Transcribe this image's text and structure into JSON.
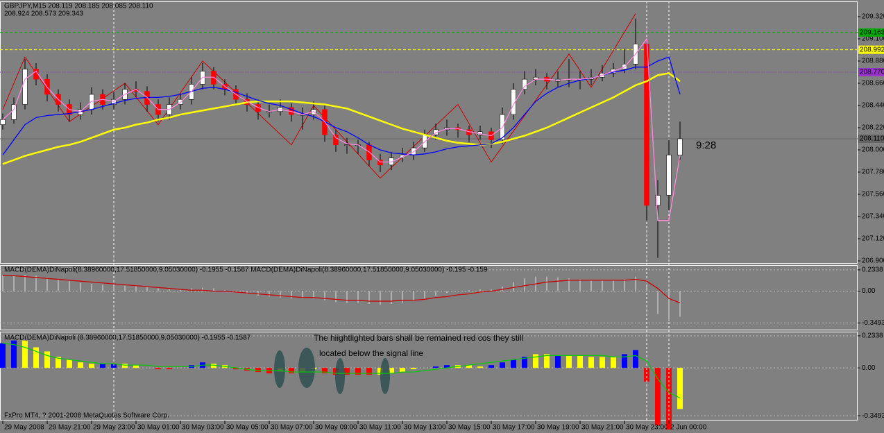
{
  "chart_data": [
    {
      "type": "candlestick",
      "title": "GBPJPY,M15  208.119 208.185 208.085 208.110",
      "subtitle": "208.924 208.573 209.343",
      "annotation": "9:28",
      "annotation_color": "#ffa500",
      "xlim": [
        -0.25,
        77
      ],
      "ylim": [
        206.8725,
        209.471
      ],
      "yticks": [
        {
          "value": 209.32,
          "label": "209.320"
        },
        {
          "value": 209.1,
          "label": "209.100"
        },
        {
          "value": 208.88,
          "label": "208.880"
        },
        {
          "value": 208.66,
          "label": "208.660"
        },
        {
          "value": 208.44,
          "label": "208.440"
        },
        {
          "value": 208.22,
          "label": "208.220"
        },
        {
          "value": 208,
          "label": "208.000"
        },
        {
          "value": 207.78,
          "label": "207.780"
        },
        {
          "value": 207.56,
          "label": "207.560"
        },
        {
          "value": 207.34,
          "label": "207.340"
        },
        {
          "value": 207.12,
          "label": "207.120"
        },
        {
          "value": 206.9,
          "label": "206.900"
        }
      ],
      "up_color": "#ffffff",
      "down_color": "#ff0000",
      "wick_color": "#000000",
      "open": [
        208.25,
        208.3,
        208.45,
        208.8,
        208.7,
        208.55,
        208.45,
        208.35,
        208.4,
        208.55,
        208.45,
        208.5,
        208.6,
        208.58,
        208.45,
        208.35,
        208.45,
        208.5,
        208.65,
        208.78,
        208.65,
        208.6,
        208.5,
        208.45,
        208.38,
        208.38,
        208.42,
        208.35,
        208.35,
        208.4,
        208.15,
        208.05,
        208.05,
        208.05,
        207.9,
        207.85,
        207.92,
        207.95,
        208.02,
        208.15,
        208.2,
        208.22,
        208.2,
        208.15,
        208.18,
        208.1,
        208.35,
        208.6,
        208.7,
        208.72,
        208.68,
        208.7,
        208.7,
        208.7,
        208.72,
        208.76,
        208.8,
        208.85,
        209.05,
        207.45,
        207.55,
        207.95
      ],
      "high": [
        208.36,
        208.52,
        208.9,
        208.86,
        208.75,
        208.6,
        208.5,
        208.47,
        208.62,
        208.6,
        208.57,
        208.66,
        208.68,
        208.63,
        208.5,
        208.52,
        208.56,
        208.72,
        208.86,
        208.82,
        208.7,
        208.64,
        208.56,
        208.5,
        208.45,
        208.5,
        208.46,
        208.42,
        208.48,
        208.44,
        208.2,
        208.12,
        208.1,
        208.08,
        207.96,
        207.98,
        208.02,
        208.08,
        208.2,
        208.26,
        208.3,
        208.26,
        208.24,
        208.24,
        208.22,
        208.42,
        208.66,
        208.78,
        208.8,
        208.76,
        208.78,
        208.9,
        208.78,
        208.8,
        208.84,
        208.86,
        209.0,
        209.3,
        209.1,
        207.7,
        208.1,
        208.28
      ],
      "low": [
        208.2,
        208.26,
        208.4,
        208.64,
        208.48,
        208.38,
        208.28,
        208.3,
        208.35,
        208.4,
        208.4,
        208.45,
        208.52,
        208.38,
        208.28,
        208.3,
        208.4,
        208.45,
        208.6,
        208.6,
        208.54,
        208.44,
        208.38,
        208.3,
        208.32,
        208.34,
        208.28,
        208.2,
        208.3,
        208.08,
        207.98,
        207.96,
        207.96,
        207.84,
        207.78,
        207.8,
        207.88,
        207.9,
        207.98,
        208.1,
        208.14,
        208.12,
        208.08,
        208.1,
        208.02,
        208.06,
        208.3,
        208.55,
        208.64,
        208.6,
        208.62,
        208.62,
        208.6,
        208.64,
        208.68,
        208.72,
        208.76,
        208.8,
        207.3,
        206.93,
        207.4,
        207.9
      ],
      "close": [
        208.3,
        208.45,
        208.8,
        208.7,
        208.55,
        208.45,
        208.35,
        208.4,
        208.55,
        208.45,
        208.5,
        208.6,
        208.58,
        208.45,
        208.35,
        208.45,
        208.5,
        208.65,
        208.78,
        208.65,
        208.6,
        208.5,
        208.45,
        208.38,
        208.38,
        208.42,
        208.35,
        208.35,
        208.4,
        208.15,
        208.05,
        208.05,
        208.05,
        207.9,
        207.85,
        207.92,
        207.95,
        208.02,
        208.15,
        208.2,
        208.22,
        208.2,
        208.15,
        208.18,
        208.1,
        208.35,
        208.6,
        208.7,
        208.72,
        208.68,
        208.7,
        208.7,
        208.7,
        208.72,
        208.76,
        208.8,
        208.85,
        209.05,
        207.45,
        207.55,
        207.95,
        208.11
      ],
      "lines": [
        {
          "color": "#ffff00",
          "values": [
            207.86,
            207.9,
            207.94,
            207.97,
            208.0,
            208.03,
            208.05,
            208.08,
            208.12,
            208.16,
            208.2,
            208.22,
            208.25,
            208.27,
            208.3,
            208.32,
            208.35,
            208.37,
            208.39,
            208.41,
            208.43,
            208.45,
            208.47,
            208.48,
            208.48,
            208.48,
            208.48,
            208.47,
            208.46,
            208.45,
            208.43,
            208.41,
            208.37,
            208.33,
            208.29,
            208.25,
            208.21,
            208.18,
            208.15,
            208.12,
            208.09,
            208.07,
            208.06,
            208.05,
            208.06,
            208.08,
            208.11,
            208.14,
            208.18,
            208.22,
            208.27,
            208.32,
            208.37,
            208.42,
            208.47,
            208.52,
            208.58,
            208.64,
            208.68,
            208.74,
            208.76,
            208.68
          ]
        },
        {
          "color": "#0000ff",
          "values": [
            207.95,
            208.1,
            208.25,
            208.32,
            208.34,
            208.35,
            208.36,
            208.38,
            208.4,
            208.43,
            208.46,
            208.49,
            208.51,
            208.52,
            208.52,
            208.53,
            208.55,
            208.58,
            208.61,
            208.62,
            208.6,
            208.57,
            208.53,
            208.49,
            208.46,
            208.44,
            208.4,
            208.36,
            208.33,
            208.28,
            208.22,
            208.18,
            208.12,
            208.05,
            208.0,
            207.97,
            207.96,
            207.95,
            207.96,
            207.98,
            208.01,
            208.03,
            208.04,
            208.05,
            208.06,
            208.12,
            208.22,
            208.35,
            208.48,
            208.56,
            208.62,
            208.66,
            208.69,
            208.71,
            208.74,
            208.77,
            208.79,
            208.82,
            208.82,
            208.88,
            208.92,
            208.55
          ]
        },
        {
          "color": "#ff88dd",
          "values": [
            208.3,
            208.4,
            208.7,
            208.78,
            208.62,
            208.5,
            208.4,
            208.38,
            208.48,
            208.5,
            208.48,
            208.55,
            208.6,
            208.52,
            208.4,
            208.4,
            208.47,
            208.58,
            208.72,
            208.72,
            208.63,
            208.55,
            208.48,
            208.42,
            208.38,
            208.4,
            208.38,
            208.35,
            208.38,
            208.28,
            208.12,
            208.06,
            208.05,
            207.98,
            207.88,
            207.88,
            207.93,
            207.98,
            208.08,
            208.17,
            208.21,
            208.21,
            208.18,
            208.16,
            208.14,
            208.22,
            208.45,
            208.63,
            208.7,
            208.7,
            208.69,
            208.7,
            208.7,
            208.71,
            208.74,
            208.78,
            208.82,
            208.95,
            209.1,
            207.3,
            207.3,
            207.95
          ]
        }
      ],
      "zigzag": {
        "color": "#cc0000",
        "x": [
          0,
          2,
          6,
          11,
          14,
          18,
          26,
          28,
          34,
          41,
          44,
          51,
          53,
          57
        ],
        "values": [
          208.4,
          208.92,
          208.28,
          208.66,
          208.25,
          208.88,
          208.05,
          208.44,
          207.72,
          208.45,
          207.88,
          208.95,
          208.62,
          209.35
        ]
      },
      "hlines": [
        {
          "value": 209.163,
          "label": "209.163",
          "color": "#00aa00",
          "style": "dash"
        },
        {
          "value": 208.992,
          "label": "208.992",
          "color": "#ffff00",
          "style": "dash"
        },
        {
          "value": 208.77,
          "label": "208.770",
          "color": "#9933cc",
          "style": "dot"
        },
        {
          "value": 208.11,
          "label": "208.110",
          "color": "#666666",
          "style": "solid"
        }
      ]
    },
    {
      "type": "macd",
      "title": "MACD(DEMA)DiNapoli(8.38960000,17.51850000,9.05030000) -0.1955 -0.1587  MACD(DEMA)DiNapoli(8.38960000,17.51850000,9.05030000) -0.195 -0.159",
      "xlim": [
        -0.25,
        77
      ],
      "ylim": [
        -0.43,
        0.2866
      ],
      "yticks": [
        0.2338,
        {
          "value": 0,
          "label": "0.00"
        },
        -0.3493
      ],
      "color": "#e0e0e0",
      "values": [
        0.17,
        0.17,
        0.18,
        0.17,
        0.15,
        0.13,
        0.11,
        0.09,
        0.08,
        0.07,
        0.06,
        0.06,
        0.06,
        0.05,
        0.03,
        0.02,
        0.02,
        0.03,
        0.04,
        0.03,
        0.01,
        -0.01,
        -0.03,
        -0.05,
        -0.06,
        -0.07,
        -0.08,
        -0.08,
        -0.08,
        -0.1,
        -0.12,
        -0.13,
        -0.13,
        -0.14,
        -0.15,
        -0.14,
        -0.13,
        -0.11,
        -0.08,
        -0.05,
        -0.02,
        0.0,
        0.01,
        0.02,
        0.02,
        0.05,
        0.1,
        0.14,
        0.16,
        0.16,
        0.15,
        0.14,
        0.13,
        0.12,
        0.12,
        0.12,
        0.13,
        0.16,
        0.05,
        -0.25,
        -0.33,
        -0.28
      ],
      "signal": {
        "color": "#cc0000",
        "values": [
          0.17,
          0.17,
          0.16,
          0.15,
          0.14,
          0.13,
          0.12,
          0.11,
          0.1,
          0.09,
          0.08,
          0.07,
          0.06,
          0.05,
          0.04,
          0.03,
          0.02,
          0.01,
          0.01,
          0.0,
          0.0,
          -0.01,
          -0.02,
          -0.03,
          -0.04,
          -0.05,
          -0.06,
          -0.07,
          -0.07,
          -0.08,
          -0.09,
          -0.1,
          -0.1,
          -0.11,
          -0.11,
          -0.11,
          -0.1,
          -0.1,
          -0.09,
          -0.07,
          -0.06,
          -0.04,
          -0.03,
          -0.01,
          0.0,
          0.02,
          0.04,
          0.06,
          0.08,
          0.1,
          0.11,
          0.12,
          0.12,
          0.12,
          0.12,
          0.12,
          0.12,
          0.13,
          0.11,
          0.03,
          -0.08,
          -0.13
        ]
      }
    },
    {
      "type": "macd-color",
      "title": "MACD(DEMA)DiNapoli (8.38960000,17.51850000,9.05030000) -0.1955 -0.1587",
      "annotations": [
        "The hiightlighted bars shall be remained red cos they still",
        "located below the signal line"
      ],
      "annotation_color": "#ffff00",
      "footer": "FxPro MT4, ? 2001-2008 MetaQuotes Software Corp.",
      "xlim": [
        -0.25,
        77
      ],
      "ylim": [
        -0.384,
        0.264
      ],
      "yticks": [
        0.2338,
        {
          "value": 0,
          "label": "0.00"
        },
        -0.3493
      ],
      "xticks": [
        {
          "value": 0,
          "label": "29 May 2008"
        },
        {
          "value": 4,
          "label": "29 May 21:00"
        },
        {
          "value": 8,
          "label": "29 May 23:00"
        },
        {
          "value": 12,
          "label": "30 May 01:00"
        },
        {
          "value": 16,
          "label": "30 May 03:00"
        },
        {
          "value": 20,
          "label": "30 May 05:00"
        },
        {
          "value": 24,
          "label": "30 May 07:00"
        },
        {
          "value": 28,
          "label": "30 May 09:00"
        },
        {
          "value": 32,
          "label": "30 May 11:00"
        },
        {
          "value": 36,
          "label": "30 May 13:00"
        },
        {
          "value": 40,
          "label": "30 May 15:00"
        },
        {
          "value": 44,
          "label": "30 May 17:00"
        },
        {
          "value": 48,
          "label": "30 May 19:00"
        },
        {
          "value": 52,
          "label": "30 May 21:00"
        },
        {
          "value": 56,
          "label": "30 May 23:00"
        },
        {
          "value": 60,
          "label": "2 Jun 00:00"
        }
      ],
      "values": [
        0.18,
        0.2,
        0.2,
        0.15,
        0.12,
        0.08,
        0.06,
        0.04,
        0.03,
        0.03,
        0.03,
        0.03,
        0.02,
        0.0,
        -0.01,
        -0.01,
        0.0,
        0.02,
        0.04,
        0.03,
        0.02,
        -0.01,
        -0.02,
        -0.03,
        -0.04,
        -0.03,
        -0.04,
        -0.03,
        -0.01,
        -0.04,
        -0.05,
        -0.05,
        -0.05,
        -0.05,
        -0.05,
        -0.04,
        -0.03,
        -0.01,
        0.0,
        0.01,
        0.02,
        0.02,
        0.02,
        0.01,
        0.02,
        0.04,
        0.06,
        0.08,
        0.1,
        0.1,
        0.09,
        0.09,
        0.09,
        0.08,
        0.08,
        0.08,
        0.1,
        0.13,
        -0.1,
        -0.42,
        -0.45,
        -0.3
      ],
      "colors": [
        "#0000ff",
        "#0000ff",
        "#ffff00",
        "#ffff00",
        "#ffff00",
        "#ffff00",
        "#ffff00",
        "#ffff00",
        "#ffff00",
        "#0000ff",
        "#0000ff",
        "#ffff00",
        "#ffff00",
        "#ff0000",
        "#ff0000",
        "#ff0000",
        "#ffff00",
        "#0000ff",
        "#0000ff",
        "#ffff00",
        "#ffff00",
        "#ff0000",
        "#ff0000",
        "#ff0000",
        "#ff0000",
        "#ffff00",
        "#ff0000",
        "#ffff00",
        "#ffff00",
        "#ff0000",
        "#ff0000",
        "#ff0000",
        "#ff0000",
        "#ff0000",
        "#ffff00",
        "#ffff00",
        "#ffff00",
        "#ffff00",
        "#ffff00",
        "#0000ff",
        "#0000ff",
        "#ffff00",
        "#ffff00",
        "#ffff00",
        "#0000ff",
        "#0000ff",
        "#0000ff",
        "#0000ff",
        "#ffff00",
        "#ffff00",
        "#0000ff",
        "#ffff00",
        "#ffff00",
        "#ffff00",
        "#ffff00",
        "#ffff00",
        "#0000ff",
        "#0000ff",
        "#ff0000",
        "#ff0000",
        "#ff0000",
        "#ffff00"
      ],
      "signal": {
        "color": "#00cc00",
        "values": [
          0.18,
          0.17,
          0.15,
          0.12,
          0.09,
          0.07,
          0.06,
          0.05,
          0.04,
          0.03,
          0.03,
          0.02,
          0.02,
          0.02,
          0.01,
          0.01,
          0.01,
          0.01,
          0.02,
          0.02,
          0.01,
          0.0,
          -0.01,
          -0.02,
          -0.02,
          -0.02,
          -0.03,
          -0.03,
          -0.03,
          -0.03,
          -0.04,
          -0.04,
          -0.04,
          -0.04,
          -0.04,
          -0.04,
          -0.03,
          -0.03,
          -0.02,
          -0.01,
          0.0,
          0.01,
          0.02,
          0.03,
          0.04,
          0.05,
          0.06,
          0.07,
          0.08,
          0.09,
          0.09,
          0.09,
          0.09,
          0.09,
          0.09,
          0.08,
          0.08,
          0.09,
          0.05,
          -0.08,
          -0.18,
          -0.22
        ]
      }
    }
  ]
}
